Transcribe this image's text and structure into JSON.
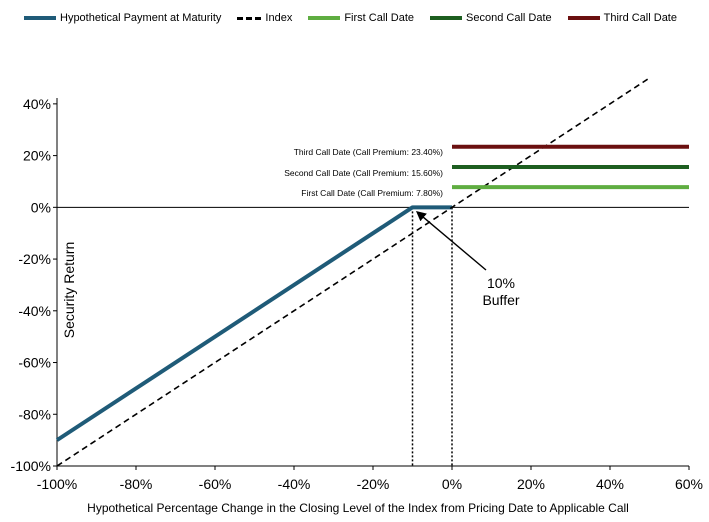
{
  "chart_data": {
    "type": "line",
    "xlabel": "Hypothetical Percentage Change in the Closing Level of the Index from Pricing Date to Applicable Call",
    "ylabel": "Security Return",
    "xlim": [
      -100,
      60
    ],
    "ylim": [
      -100,
      50
    ],
    "x_ticks": [
      "-100%",
      "-80%",
      "-60%",
      "-40%",
      "-20%",
      "0%",
      "20%",
      "40%",
      "60%"
    ],
    "x_tick_values": [
      -100,
      -80,
      -60,
      -40,
      -20,
      0,
      20,
      40,
      60
    ],
    "y_ticks": [
      "-100%",
      "-80%",
      "-60%",
      "-40%",
      "-20%",
      "0%",
      "20%",
      "40%"
    ],
    "y_tick_values": [
      -100,
      -80,
      -60,
      -40,
      -20,
      0,
      20,
      40
    ],
    "grid": false,
    "legend_position": "top",
    "series": [
      {
        "name": "Hypothetical Payment at Maturity",
        "color": "#1f5b78",
        "style": "solid",
        "x": [
          -100,
          -10,
          0
        ],
        "y": [
          -90,
          0,
          0
        ]
      },
      {
        "name": "Index",
        "color": "#000000",
        "style": "dashed",
        "x": [
          -100,
          50
        ],
        "y": [
          -100,
          50
        ]
      },
      {
        "name": "First Call Date",
        "color": "#5fad41",
        "style": "solid",
        "x": [
          0,
          60
        ],
        "y": [
          7.8,
          7.8
        ]
      },
      {
        "name": "Second Call Date",
        "color": "#1d5e20",
        "style": "solid",
        "x": [
          0,
          60
        ],
        "y": [
          15.6,
          15.6
        ]
      },
      {
        "name": "Third Call Date",
        "color": "#6b1010",
        "style": "solid",
        "x": [
          0,
          60
        ],
        "y": [
          23.4,
          23.4
        ]
      }
    ],
    "annotations": {
      "third_call": "Third Call Date (Call Premium: 23.40%)",
      "second_call": "Second Call Date (Call Premium: 15.60%)",
      "first_call": "First Call Date (Call Premium: 7.80%)",
      "buffer_line1": "10%",
      "buffer_line2": "Buffer"
    },
    "buffer_x": [
      -10,
      0
    ]
  }
}
